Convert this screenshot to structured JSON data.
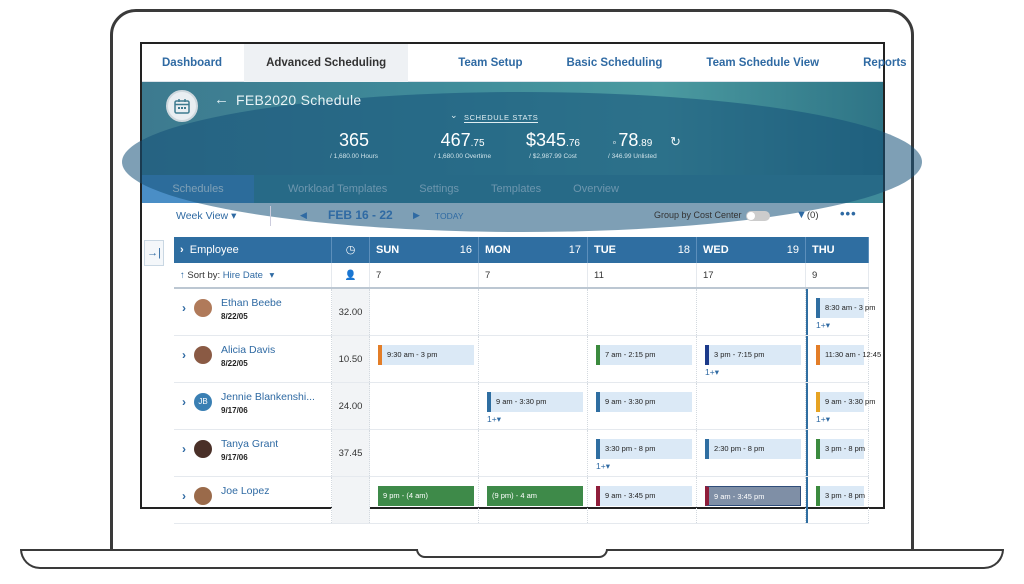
{
  "nav": {
    "items": [
      "Dashboard",
      "Advanced Scheduling",
      "Team Setup",
      "Basic Scheduling",
      "Team Schedule View",
      "Reports"
    ],
    "active_index": 1
  },
  "banner": {
    "title": "FEB2020 Schedule",
    "stats_label": "SCHEDULE STATS",
    "stats": [
      {
        "main": "365",
        "decimal": "",
        "sub": "/ 1,680.00 Hours"
      },
      {
        "main": "467",
        "decimal": ".75",
        "sub": "/ 1,680.00 Overtime"
      },
      {
        "main": "$345",
        "decimal": ".76",
        "sub": "/ $2,987.99 Cost"
      },
      {
        "main": "78",
        "decimal": ".89",
        "sub": "/ 346.99 Unlisted"
      }
    ]
  },
  "subtabs": {
    "items": [
      "Schedules",
      "Workload Templates",
      "Settings",
      "Templates",
      "Overview"
    ],
    "active_index": 0
  },
  "toolbar": {
    "view": "Week View",
    "range": "FEB 16 - 22",
    "today": "TODAY",
    "group_label": "Group by Cost Center",
    "filter_count": "(0)"
  },
  "grid": {
    "employee_header": "Employee",
    "sort_label": "Sort by:",
    "sort_value": "Hire Date",
    "days": [
      {
        "name": "SUN",
        "num": "16",
        "count": "7"
      },
      {
        "name": "MON",
        "num": "17",
        "count": "7"
      },
      {
        "name": "TUE",
        "num": "18",
        "count": "11"
      },
      {
        "name": "WED",
        "num": "19",
        "count": "17"
      },
      {
        "name": "THU",
        "num": "",
        "count": "9"
      }
    ],
    "rows": [
      {
        "name": "Ethan Beebe",
        "date": "8/22/05",
        "hours": "32.00",
        "initials": "",
        "avatar_color": "#b07a5a",
        "shifts": [
          null,
          null,
          null,
          null,
          {
            "text": "8:30 am - 3 pm",
            "color": "blue",
            "more": "1+▾"
          }
        ]
      },
      {
        "name": "Alicia Davis",
        "date": "8/22/05",
        "hours": "10.50",
        "initials": "",
        "avatar_color": "#8a5a44",
        "shifts": [
          {
            "text": "9:30 am - 3 pm",
            "color": "orange"
          },
          null,
          {
            "text": "7 am - 2:15 pm",
            "color": "green"
          },
          {
            "text": "3 pm - 7:15 pm",
            "color": "navy",
            "more": "1+▾"
          },
          {
            "text": "11:30 am - 12:45",
            "color": "orange"
          }
        ]
      },
      {
        "name": "Jennie Blankenshi...",
        "date": "9/17/06",
        "hours": "24.00",
        "initials": "JB",
        "avatar_color": "#3a7fb3",
        "shifts": [
          null,
          {
            "text": "9 am - 3:30 pm",
            "color": "blue",
            "more": "1+▾"
          },
          {
            "text": "9 am - 3:30 pm",
            "color": "blue"
          },
          null,
          {
            "text": "9 am - 3:30 pm",
            "color": "yellow",
            "more": "1+▾"
          }
        ]
      },
      {
        "name": "Tanya Grant",
        "date": "9/17/06",
        "hours": "37.45",
        "initials": "",
        "avatar_color": "#4a3028",
        "shifts": [
          null,
          null,
          {
            "text": "3:30 pm - 8 pm",
            "color": "blue",
            "more": "1+▾"
          },
          {
            "text": "2:30 pm - 8 pm",
            "color": "blue"
          },
          {
            "text": "3 pm - 8 pm",
            "color": "green"
          }
        ]
      },
      {
        "name": "Joe Lopez",
        "date": "",
        "hours": "",
        "initials": "",
        "avatar_color": "#9a6a4a",
        "shifts": [
          {
            "text": "9 pm - (4 am)",
            "color": "solid-green"
          },
          {
            "text": "(9 pm) - 4 am",
            "color": "solid-green"
          },
          {
            "text": "9 am - 3:45 pm",
            "color": "maroon"
          },
          {
            "text": "9 am - 3:45 pm",
            "color": "grey-sel"
          },
          {
            "text": "3 pm - 8 pm",
            "color": "green"
          }
        ]
      }
    ]
  }
}
